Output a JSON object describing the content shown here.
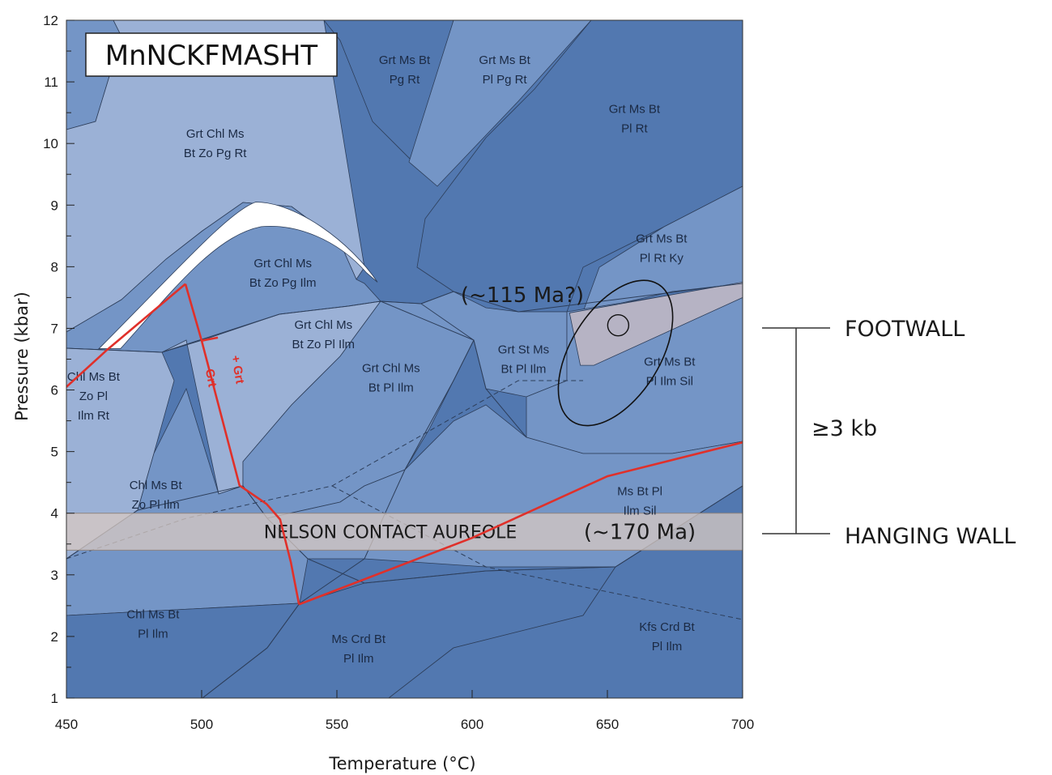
{
  "chart_data": {
    "type": "phase-diagram",
    "title": "MnNCKFMASHT",
    "xlabel": "Temperature (°C)",
    "ylabel": "Pressure (kbar)",
    "xlim": [
      450,
      700
    ],
    "ylim": [
      1,
      12
    ],
    "xticks": [
      "450",
      "500",
      "550",
      "600",
      "650",
      "700"
    ],
    "yticks": [
      "1",
      "2",
      "3",
      "4",
      "5",
      "6",
      "7",
      "8",
      "9",
      "10",
      "11",
      "12"
    ],
    "colors": {
      "pale": "#9bb1d6",
      "mid": "#7495c6",
      "dark": "#5278b0",
      "red": "#e0302a",
      "aureole_band": "#d8c9c2",
      "peak_field": "#b6b3c4"
    },
    "fields": [
      {
        "label": [
          "Grt Ms Bt",
          "Pg Rt"
        ],
        "x": 575,
        "y": 11.2
      },
      {
        "label": [
          "Grt Ms Bt",
          "Pl Pg Rt"
        ],
        "x": 612,
        "y": 11.2
      },
      {
        "label": [
          "Grt Ms Bt",
          "Pl Rt"
        ],
        "x": 660,
        "y": 10.4
      },
      {
        "label": [
          "Grt Chl Ms",
          "Bt Zo Pg Rt"
        ],
        "x": 505,
        "y": 10.0
      },
      {
        "label": [
          "Grt Chl Ms",
          "Bt Zo Pg Ilm"
        ],
        "x": 530,
        "y": 7.9
      },
      {
        "label": [
          "Grt Ms Bt",
          "Pl Rt Ky"
        ],
        "x": 670,
        "y": 8.3
      },
      {
        "label": [
          "Grt Chl Ms",
          "Bt Zo Pl Ilm"
        ],
        "x": 545,
        "y": 6.9
      },
      {
        "label": [
          "Grt St Ms",
          "Bt Pl Ilm"
        ],
        "x": 619,
        "y": 6.5
      },
      {
        "label": [
          "Grt Chl Ms",
          "Bt Pl Ilm"
        ],
        "x": 570,
        "y": 6.2
      },
      {
        "label": [
          "Grt Ms Bt",
          "Pl Ilm Sil"
        ],
        "x": 673,
        "y": 6.3
      },
      {
        "label": [
          "Chl Ms Bt",
          "Zo Pl",
          "Ilm Rt"
        ],
        "x": 460,
        "y": 5.9
      },
      {
        "label": [
          "Chl Ms Bt",
          "Zo Pl Ilm"
        ],
        "x": 483,
        "y": 4.3
      },
      {
        "label": [
          "Ms Bt Pl",
          "Ilm Sil"
        ],
        "x": 662,
        "y": 4.2
      },
      {
        "label": [
          "Chl Ms Bt",
          "Pl Ilm"
        ],
        "x": 482,
        "y": 2.2
      },
      {
        "label": [
          "Ms Crd Bt",
          "Pl Ilm"
        ],
        "x": 558,
        "y": 1.8
      },
      {
        "label": [
          "Kfs Crd Bt",
          "Pl Ilm"
        ],
        "x": 672,
        "y": 2.0
      }
    ],
    "reactions": {
      "plus": "+ Grt",
      "minus": "- Grt",
      "red_line": [
        {
          "x": 450,
          "p": 6.05
        },
        {
          "x": 465,
          "p": 6.65
        },
        {
          "x": 494,
          "p": 7.72
        },
        {
          "x": 500,
          "p": 6.8
        },
        {
          "x": 514,
          "p": 4.45
        },
        {
          "x": 524,
          "p": 4.15
        },
        {
          "x": 529,
          "p": 3.9
        },
        {
          "x": 533,
          "p": 3.2
        },
        {
          "x": 536,
          "p": 2.52
        },
        {
          "x": 600,
          "p": 3.6
        },
        {
          "x": 650,
          "p": 4.6
        },
        {
          "x": 700,
          "p": 5.15
        }
      ]
    },
    "annotations": {
      "peak_age": "(~115 Ma?)",
      "contact_age": "(~170 Ma)",
      "contact_band": "NELSON CONTACT AUREOLE",
      "contact_band_p": [
        3.4,
        4.0
      ],
      "peak_ellipse_center": {
        "x": 653,
        "p": 6.6
      },
      "peak_point": {
        "x": 654,
        "p": 7.05
      }
    },
    "side_bracket": {
      "footwall": "FOOTWALL",
      "hanging_wall": "HANGING WALL",
      "difference": "≥3 kb",
      "footwall_p": 7.0,
      "hanging_wall_p": 3.65
    }
  }
}
